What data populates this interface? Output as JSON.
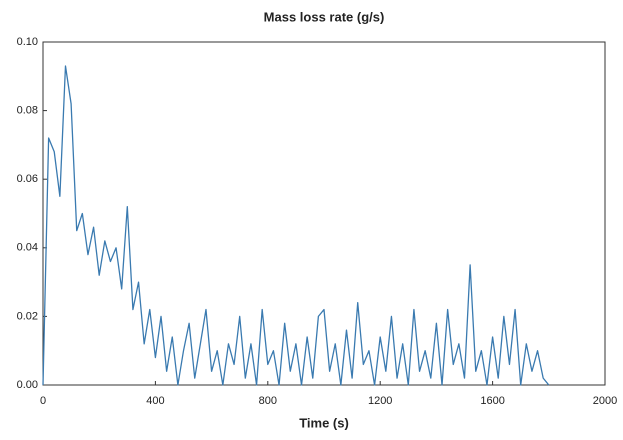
{
  "chart_data": {
    "type": "line",
    "title": "Mass loss rate (g/s)",
    "xlabel": "Time (s)",
    "x": [
      0,
      20,
      40,
      60,
      80,
      100,
      120,
      140,
      160,
      180,
      200,
      220,
      240,
      260,
      280,
      300,
      320,
      340,
      360,
      380,
      400,
      420,
      440,
      460,
      480,
      500,
      520,
      540,
      560,
      580,
      600,
      620,
      640,
      660,
      680,
      700,
      720,
      740,
      760,
      780,
      800,
      820,
      840,
      860,
      880,
      900,
      920,
      940,
      960,
      980,
      1000,
      1020,
      1040,
      1060,
      1080,
      1100,
      1120,
      1140,
      1160,
      1180,
      1200,
      1220,
      1240,
      1260,
      1280,
      1300,
      1320,
      1340,
      1360,
      1380,
      1400,
      1420,
      1440,
      1460,
      1480,
      1500,
      1520,
      1540,
      1560,
      1580,
      1600,
      1620,
      1640,
      1660,
      1680,
      1700,
      1720,
      1740,
      1760,
      1780,
      1800
    ],
    "values": [
      0,
      0.072,
      0.068,
      0.055,
      0.093,
      0.082,
      0.045,
      0.05,
      0.038,
      0.046,
      0.032,
      0.042,
      0.036,
      0.04,
      0.028,
      0.052,
      0.022,
      0.03,
      0.012,
      0.022,
      0.008,
      0.02,
      0.004,
      0.014,
      0,
      0.01,
      0.018,
      0.002,
      0.012,
      0.022,
      0.004,
      0.01,
      0,
      0.012,
      0.006,
      0.02,
      0.002,
      0.012,
      0,
      0.022,
      0.006,
      0.01,
      0,
      0.018,
      0.004,
      0.012,
      0,
      0.014,
      0.002,
      0.02,
      0.022,
      0.004,
      0.012,
      0,
      0.016,
      0.002,
      0.024,
      0.006,
      0.01,
      0,
      0.014,
      0.004,
      0.02,
      0.002,
      0.012,
      0,
      0.022,
      0.004,
      0.01,
      0.002,
      0.018,
      0,
      0.022,
      0.006,
      0.012,
      0.002,
      0.035,
      0.004,
      0.01,
      0,
      0.014,
      0.002,
      0.02,
      0.006,
      0.022,
      0,
      0.012,
      0.004,
      0.01,
      0.002,
      0
    ],
    "color": "#3a7ab0",
    "xlim": [
      0,
      2000
    ],
    "xticks": [
      0,
      400,
      800,
      1200,
      1600,
      2000
    ],
    "ylim": [
      0,
      0.1
    ],
    "yticks": [
      {
        "value": 0,
        "label": "0.00"
      },
      {
        "value": 0.02,
        "label": "0.02"
      },
      {
        "value": 0.04,
        "label": "0.04"
      },
      {
        "value": 0.06,
        "label": "0.06"
      },
      {
        "value": 0.08,
        "label": "0.08"
      },
      {
        "value": 0.1,
        "label": "0.10"
      }
    ],
    "grid": false
  }
}
